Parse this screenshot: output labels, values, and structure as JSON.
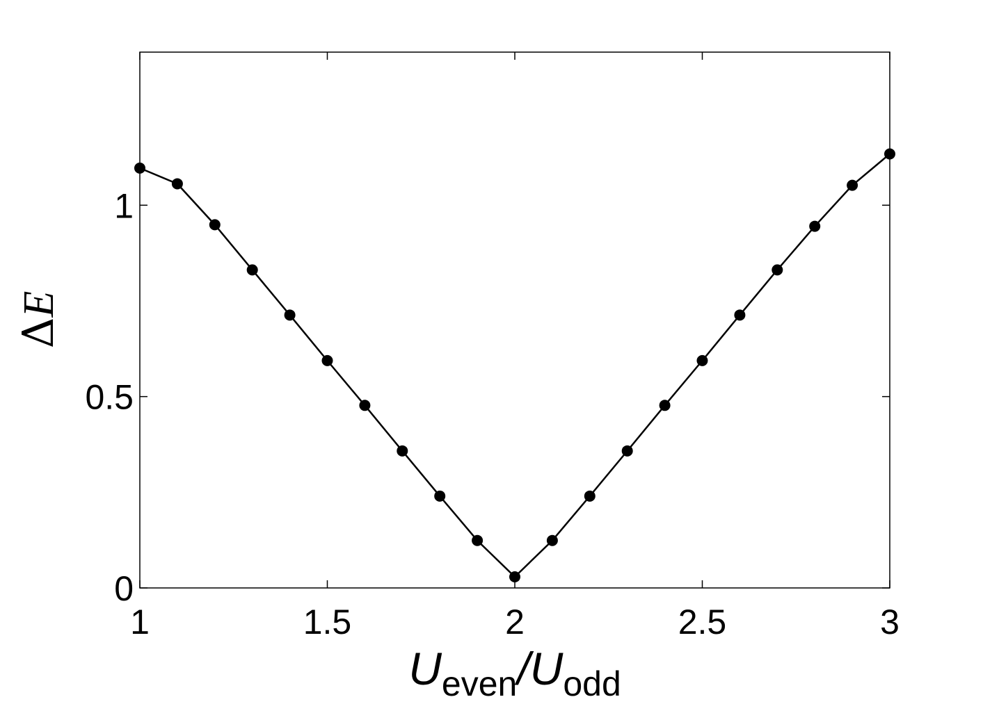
{
  "chart_data": {
    "type": "line",
    "title": "",
    "xlabel": {
      "main": "U",
      "sub1": "even",
      "sep": "/U",
      "sub2": "odd"
    },
    "ylabel": {
      "symbol": "Δ",
      "var": "E"
    },
    "xlim": [
      1,
      3
    ],
    "ylim": [
      0,
      1.4
    ],
    "xticks": [
      1,
      1.5,
      2,
      2.5,
      3
    ],
    "xtick_labels": [
      "1",
      "1.5",
      "2",
      "2.5",
      "3"
    ],
    "yticks": [
      0,
      0.5,
      1
    ],
    "ytick_labels": [
      "0",
      "0.5",
      "1"
    ],
    "grid": false,
    "legend": "none",
    "line_color": "#000000",
    "marker": "filled-circle",
    "series": [
      {
        "x": [
          1.0,
          1.1,
          1.2,
          1.3,
          1.4,
          1.5,
          1.6,
          1.7,
          1.8,
          1.9,
          2.0,
          2.1,
          2.2,
          2.3,
          2.4,
          2.5,
          2.6,
          2.7,
          2.8,
          2.9,
          3.0
        ],
        "y": [
          1.097,
          1.056,
          0.949,
          0.831,
          0.713,
          0.594,
          0.477,
          0.358,
          0.24,
          0.124,
          0.029,
          0.124,
          0.24,
          0.358,
          0.477,
          0.594,
          0.713,
          0.831,
          0.945,
          1.052,
          1.134
        ]
      }
    ]
  }
}
